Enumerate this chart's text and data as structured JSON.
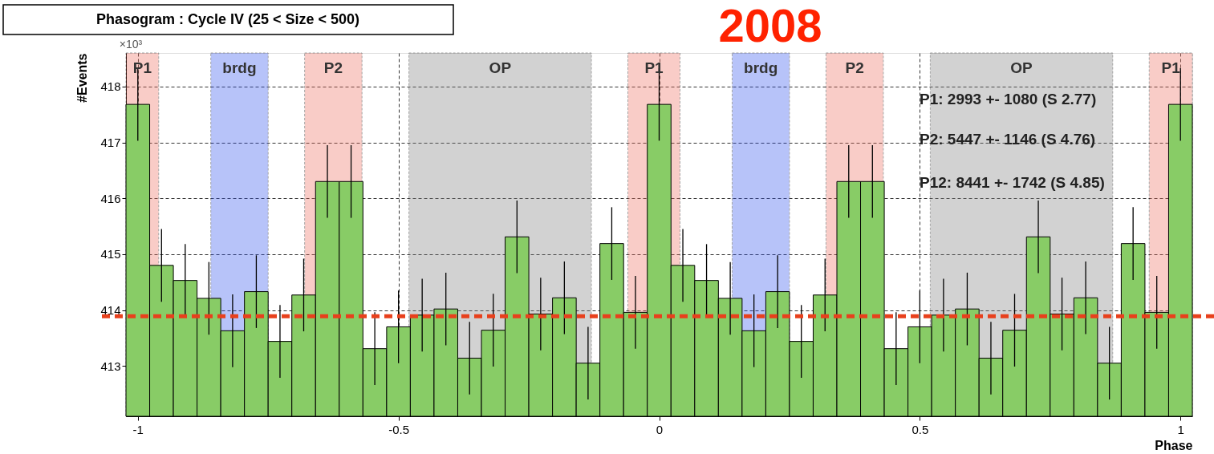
{
  "chart_data": {
    "type": "histogram",
    "title": "Phasogram : Cycle IV  (25 < Size < 500)",
    "xlabel": "Phase",
    "ylabel": "#Events",
    "bins": [
      -1.02273,
      -0.97727,
      -0.93182,
      -0.88636,
      -0.84091,
      -0.79545,
      -0.75,
      -0.70455,
      -0.65909,
      -0.61364,
      -0.56818,
      -0.52273,
      -0.47727,
      -0.43182,
      -0.38636,
      -0.34091,
      -0.29545,
      -0.25,
      -0.20455,
      -0.15909,
      -0.11364,
      -0.06818,
      -0.02273,
      0.02273,
      0.06818,
      0.11364,
      0.15909,
      0.20455,
      0.25,
      0.29545,
      0.34091,
      0.38636,
      0.43182,
      0.47727,
      0.52273,
      0.56818,
      0.61364,
      0.65909,
      0.70455,
      0.75,
      0.79545,
      0.84091,
      0.88636,
      0.93182,
      0.97727,
      1.02273
    ],
    "values": [
      417.68,
      414.8,
      414.53,
      414.21,
      413.63,
      414.33,
      413.44,
      414.27,
      416.3,
      416.3,
      413.31,
      413.7,
      413.91,
      414.02,
      413.14,
      413.64,
      415.31,
      413.93,
      414.22,
      413.05,
      415.19,
      413.96,
      417.68,
      414.8,
      414.53,
      414.21,
      413.63,
      414.33,
      413.44,
      414.27,
      416.3,
      416.3,
      413.31,
      413.7,
      413.91,
      414.02,
      413.14,
      413.64,
      415.31,
      413.93,
      414.22,
      413.05,
      415.19,
      413.96,
      417.68
    ],
    "errors": [
      0.65,
      0.65,
      0.65,
      0.65,
      0.65,
      0.65,
      0.65,
      0.65,
      0.65,
      0.65,
      0.65,
      0.65,
      0.65,
      0.65,
      0.65,
      0.65,
      0.65,
      0.65,
      0.65,
      0.65,
      0.65,
      0.65,
      0.65,
      0.65,
      0.65,
      0.65,
      0.65,
      0.65,
      0.65,
      0.65,
      0.65,
      0.65,
      0.65,
      0.65,
      0.65,
      0.65,
      0.65,
      0.65,
      0.65,
      0.65,
      0.65,
      0.65,
      0.65,
      0.65,
      0.65
    ],
    "color": "#88cc66",
    "xlim": [
      -1.02273,
      1.02273
    ],
    "xticks": [
      -1,
      -0.5,
      0,
      0.5,
      1
    ],
    "ylim": [
      412.1,
      418.6
    ],
    "yticks": [
      413,
      414,
      415,
      416,
      417,
      418
    ],
    "grid": true,
    "bands": [
      {
        "axis": "x",
        "from": -1.02273,
        "to": -0.96,
        "label": "P1",
        "color": "#f07060"
      },
      {
        "axis": "x",
        "from": -0.86,
        "to": -0.75,
        "label": "brdg",
        "color": "#3355ee"
      },
      {
        "axis": "x",
        "from": -0.68,
        "to": -0.57,
        "label": "P2",
        "color": "#f07060"
      },
      {
        "axis": "x",
        "from": -0.48,
        "to": -0.13,
        "label": "OP",
        "color": "#808080"
      },
      {
        "axis": "x",
        "from": -0.06,
        "to": 0.04,
        "label": "P1",
        "color": "#f07060"
      },
      {
        "axis": "x",
        "from": 0.14,
        "to": 0.25,
        "label": "brdg",
        "color": "#3355ee"
      },
      {
        "axis": "x",
        "from": 0.32,
        "to": 0.43,
        "label": "P2",
        "color": "#f07060"
      },
      {
        "axis": "x",
        "from": 0.52,
        "to": 0.87,
        "label": "OP",
        "color": "#808080"
      },
      {
        "axis": "x",
        "from": 0.94,
        "to": 1.02273,
        "label": "P1",
        "color": "#f07060"
      }
    ],
    "ref_lines": [
      {
        "axis": "y",
        "value": 413.89,
        "color": "#e8401c",
        "line_style": "dashed"
      }
    ],
    "annotations": [
      "×10³",
      "2008",
      "P1: 2993 +- 1080 (S 2.77)",
      "P2: 5447 +- 1146 (S 4.76)",
      "P12: 8441 +- 1742 (S 4.85)"
    ]
  }
}
